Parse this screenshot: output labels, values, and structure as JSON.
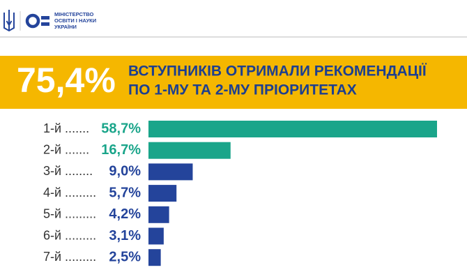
{
  "header": {
    "org": [
      "МІНІСТЕРСТВО",
      "ОСВІТИ І НАУКИ",
      "УКРАЇНИ"
    ]
  },
  "chart_data": {
    "type": "bar",
    "orientation": "horizontal",
    "title": "75,4%",
    "subtitle": [
      "ВСТУПНИКІВ ОТРИМАЛИ РЕКОМЕНДАЦІЇ",
      "ПО 1-МУ ТА 2-МУ ПРІОРИТЕТАХ"
    ],
    "categories": [
      "1-й .......",
      "2-й .......",
      "3-й ........",
      "4-й .........",
      "5-й .........",
      "6-й .........",
      "7-й ........."
    ],
    "values": [
      58.7,
      16.7,
      9.0,
      5.7,
      4.2,
      3.1,
      2.5
    ],
    "value_labels": [
      "58,7%",
      "16,7%",
      "9,0%",
      "5,7%",
      "4,2%",
      "3,1%",
      "2,5%"
    ],
    "colors": [
      "#1aa58a",
      "#1aa58a",
      "#24449b",
      "#24449b",
      "#24449b",
      "#24449b",
      "#24449b"
    ]
  }
}
